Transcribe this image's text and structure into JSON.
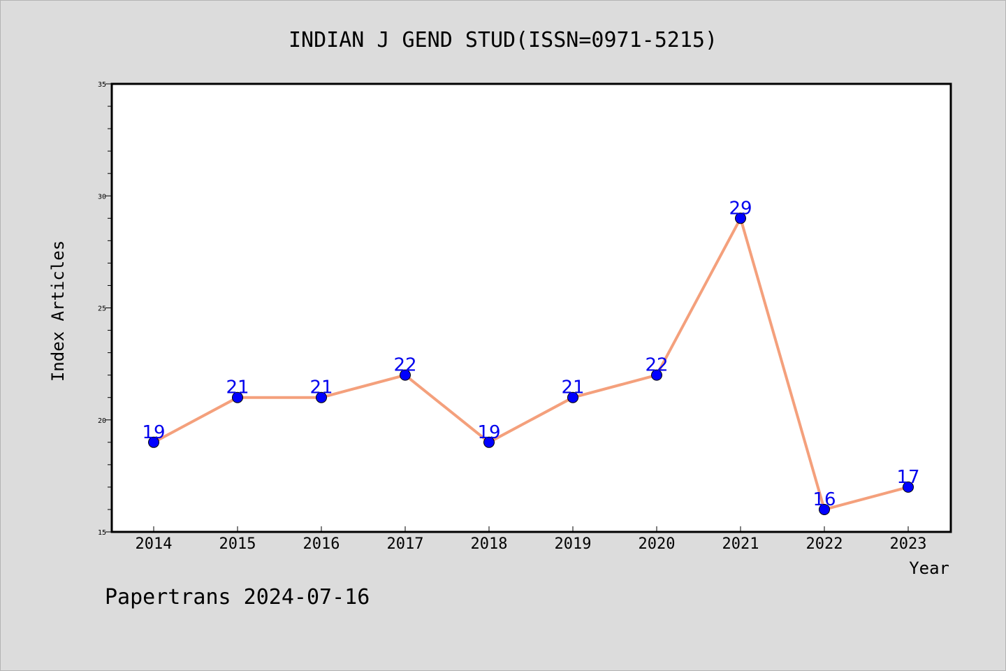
{
  "chart_data": {
    "type": "line",
    "title": "INDIAN J GEND STUD(ISSN=0971-5215)",
    "xlabel": "Year",
    "ylabel": "Index Articles",
    "categories": [
      "2014",
      "2015",
      "2016",
      "2017",
      "2018",
      "2019",
      "2020",
      "2021",
      "2022",
      "2023"
    ],
    "series": [
      {
        "values": [
          19,
          21,
          21,
          22,
          19,
          21,
          22,
          29,
          16,
          17
        ]
      }
    ],
    "ylim": [
      15,
      35
    ],
    "yticks": [
      15,
      20,
      25,
      30,
      35
    ],
    "grid": false,
    "colors": {
      "line": "#f4a07c",
      "marker": "#0000ff",
      "data_label": "#0000ee",
      "background": "#dcdcdc",
      "plot_background": "#ffffff"
    }
  },
  "footer": {
    "text": "Papertrans 2024-07-16"
  }
}
